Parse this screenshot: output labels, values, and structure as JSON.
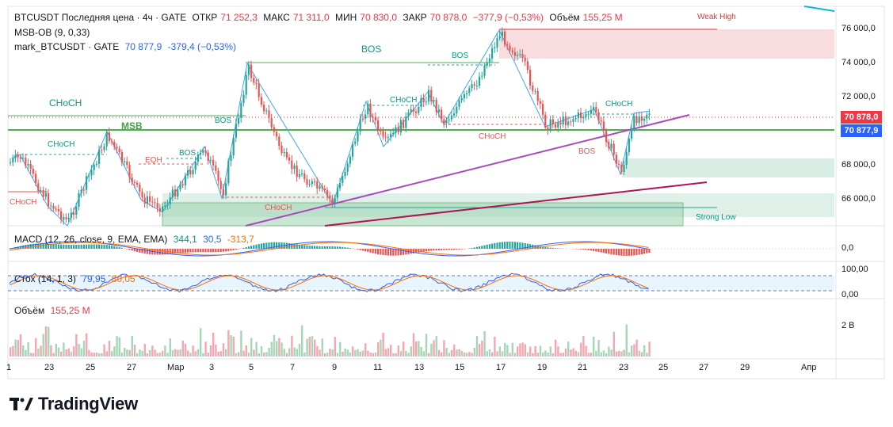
{
  "header": {
    "symbol": "BTCUSDT Последняя цена · 4ч · GATE",
    "open_label": "ОТКР",
    "open_value": "71 252,3",
    "high_label": "МАКС",
    "high_value": "71 311,0",
    "low_label": "МИН",
    "low_value": "70 830,0",
    "close_label": "ЗАКР",
    "close_value": "70 878,0",
    "change": "−377,9 (−0,53%)",
    "volume_label": "Объём",
    "volume_value": "155,25 M"
  },
  "indicators": {
    "msb_ob": "MSB-OB (9, 0,33)",
    "mark_label": "mark_BTCUSDT · GATE",
    "mark_value": "70 877,9",
    "mark_change": "-379,4 (−0,53%)"
  },
  "macd": {
    "label": "MACD (12, 26, close, 9, EMA, EMA)",
    "v1": "344,1",
    "v2": "30,5",
    "v3": "-313,7",
    "axis": "0,0"
  },
  "stoch": {
    "label": "Стох (14, 1, 3)",
    "v1": "79,95",
    "v2": "80,05",
    "axis_top": "100,00",
    "axis_bottom": "0,00"
  },
  "volume": {
    "label": "Объём",
    "value": "155,25 M",
    "axis": "2 B"
  },
  "price_axis": [
    "76 000,0",
    "74 000,0",
    "72 000,0",
    "68 000,0",
    "66 000,0"
  ],
  "price_tags": {
    "last": "70 878,0",
    "mark": "70 877,9"
  },
  "time_axis": [
    "1",
    "23",
    "25",
    "27",
    "Мар",
    "3",
    "5",
    "7",
    "9",
    "11",
    "13",
    "15",
    "17",
    "19",
    "21",
    "23",
    "25",
    "27",
    "29",
    "Апр"
  ],
  "annotations": {
    "weak_high": "Weak High",
    "strong_low": "Strong Low",
    "bos": "BOS",
    "choch": "CHoCH",
    "msb": "MSB",
    "eqh": "EQH",
    "chart_short_label": "CHoCH"
  },
  "brand": {
    "name": "TradingView"
  },
  "colors": {
    "up": "#26a69a",
    "down": "#ef5350",
    "last_price": "#f23645",
    "mark_price": "#2962ff"
  }
}
